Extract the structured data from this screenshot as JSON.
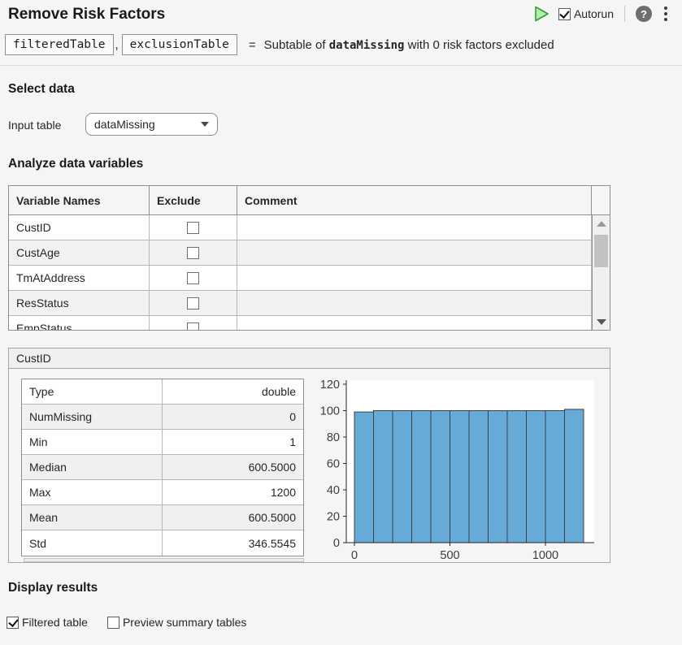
{
  "header": {
    "title": "Remove Risk Factors",
    "run_button": "run",
    "autorun_label": "Autorun",
    "autorun_checked": true,
    "help_glyph": "?"
  },
  "signature": {
    "output1": "filteredTable",
    "separator": ",",
    "output2": "exclusionTable",
    "equals": "=",
    "description_prefix": "Subtable of ",
    "description_code": "dataMissing",
    "description_suffix": " with 0 risk factors excluded"
  },
  "select_data": {
    "heading": "Select data",
    "input_table_label": "Input table",
    "input_table_value": "dataMissing"
  },
  "analyze": {
    "heading": "Analyze data variables",
    "columns": [
      "Variable Names",
      "Exclude",
      "Comment"
    ],
    "rows": [
      {
        "name": "CustID",
        "excluded": false,
        "comment": ""
      },
      {
        "name": "CustAge",
        "excluded": false,
        "comment": ""
      },
      {
        "name": "TmAtAddress",
        "excluded": false,
        "comment": ""
      },
      {
        "name": "ResStatus",
        "excluded": false,
        "comment": ""
      },
      {
        "name": "EmpStatus",
        "excluded": false,
        "comment": ""
      }
    ]
  },
  "summary_panel": {
    "variable_name": "CustID",
    "stats": [
      {
        "label": "Type",
        "value": "double"
      },
      {
        "label": "NumMissing",
        "value": "0"
      },
      {
        "label": "Min",
        "value": "1"
      },
      {
        "label": "Median",
        "value": "600.5000"
      },
      {
        "label": "Max",
        "value": "1200"
      },
      {
        "label": "Mean",
        "value": "600.5000"
      },
      {
        "label": "Std",
        "value": "346.5545"
      }
    ]
  },
  "chart_data": {
    "type": "bar",
    "subtype": "histogram",
    "title": "",
    "xlabel": "",
    "ylabel": "",
    "bin_edges": [
      0,
      100,
      200,
      300,
      400,
      500,
      600,
      700,
      800,
      900,
      1000,
      1100,
      1200
    ],
    "values": [
      99,
      100,
      100,
      100,
      100,
      100,
      100,
      100,
      100,
      100,
      100,
      101
    ],
    "xticks": [
      0,
      500,
      1000
    ],
    "yticks": [
      0,
      20,
      40,
      60,
      80,
      100,
      120
    ],
    "xlim": [
      0,
      1200
    ],
    "ylim": [
      0,
      120
    ],
    "grid": false,
    "legend": null,
    "bar_color": "#66aad7",
    "bar_edge_color": "#404040",
    "axis_color": "#262626",
    "plot_bg": "#ffffff"
  },
  "display_results": {
    "heading": "Display results",
    "options": [
      {
        "label": "Filtered table",
        "checked": true
      },
      {
        "label": "Preview summary tables",
        "checked": false
      }
    ]
  }
}
